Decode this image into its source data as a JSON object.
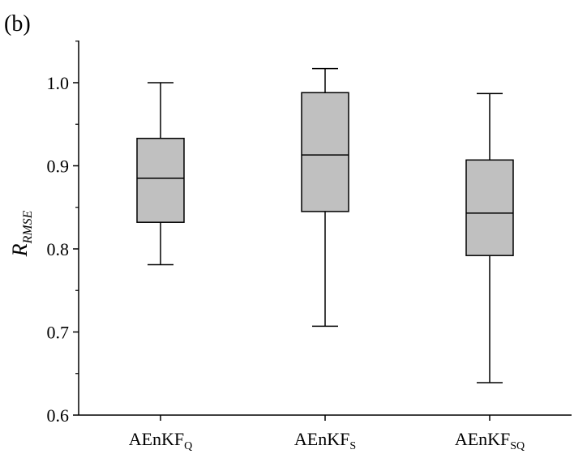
{
  "panel_label": "(b)",
  "chart_data": {
    "type": "box",
    "ylabel": "R",
    "ylabel_subscript": "RMSE",
    "xlabel": "",
    "ylim": [
      0.6,
      1.05
    ],
    "yticks": [
      "0.6",
      "0.7",
      "0.8",
      "0.9",
      "1.0"
    ],
    "ytick_values": [
      0.6,
      0.7,
      0.8,
      0.9,
      1.0
    ],
    "grid": false,
    "box_color": "#c0c0c0",
    "categories": [
      {
        "base": "AEnKF",
        "sub": "Q",
        "whisker_low": 0.781,
        "q1": 0.832,
        "median": 0.885,
        "q3": 0.933,
        "whisker_high": 1.0
      },
      {
        "base": "AEnKF",
        "sub": "S",
        "whisker_low": 0.707,
        "q1": 0.845,
        "median": 0.913,
        "q3": 0.988,
        "whisker_high": 1.017
      },
      {
        "base": "AEnKF",
        "sub": "SQ",
        "whisker_low": 0.639,
        "q1": 0.792,
        "median": 0.843,
        "q3": 0.907,
        "whisker_high": 0.987
      }
    ]
  }
}
